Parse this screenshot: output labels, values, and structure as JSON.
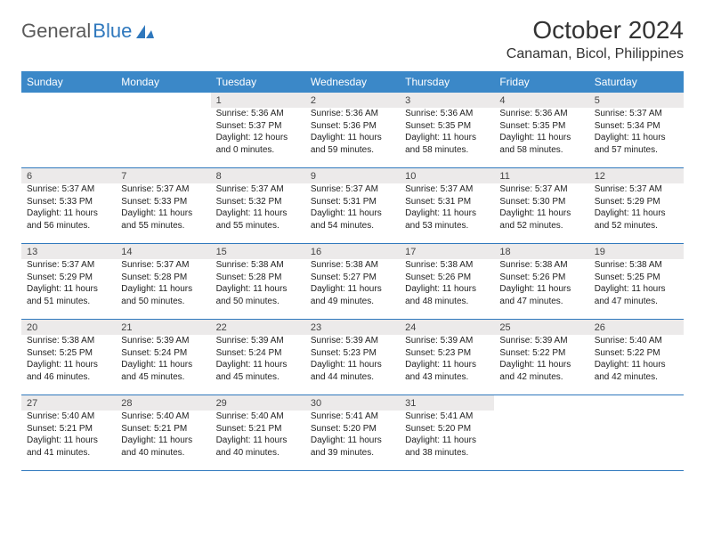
{
  "logo": {
    "text1": "General",
    "text2": "Blue",
    "text1_color": "#5a5a5a",
    "text2_color": "#2f78bd",
    "icon_color": "#2f78bd"
  },
  "title": "October 2024",
  "subtitle": "Canaman, Bicol, Philippines",
  "colors": {
    "header_bg": "#3b88c8",
    "header_text": "#ffffff",
    "daynum_bg": "#eceaea",
    "week_border": "#2f78bd",
    "body_text": "#222222"
  },
  "fontsize": {
    "title": 28,
    "subtitle": 16,
    "dow": 12,
    "cell": 10,
    "daynum": 11
  },
  "days_of_week": [
    "Sunday",
    "Monday",
    "Tuesday",
    "Wednesday",
    "Thursday",
    "Friday",
    "Saturday"
  ],
  "weeks": [
    [
      null,
      null,
      {
        "n": "1",
        "sr": "5:36 AM",
        "ss": "5:37 PM",
        "dl": "12 hours and 0 minutes."
      },
      {
        "n": "2",
        "sr": "5:36 AM",
        "ss": "5:36 PM",
        "dl": "11 hours and 59 minutes."
      },
      {
        "n": "3",
        "sr": "5:36 AM",
        "ss": "5:35 PM",
        "dl": "11 hours and 58 minutes."
      },
      {
        "n": "4",
        "sr": "5:36 AM",
        "ss": "5:35 PM",
        "dl": "11 hours and 58 minutes."
      },
      {
        "n": "5",
        "sr": "5:37 AM",
        "ss": "5:34 PM",
        "dl": "11 hours and 57 minutes."
      }
    ],
    [
      {
        "n": "6",
        "sr": "5:37 AM",
        "ss": "5:33 PM",
        "dl": "11 hours and 56 minutes."
      },
      {
        "n": "7",
        "sr": "5:37 AM",
        "ss": "5:33 PM",
        "dl": "11 hours and 55 minutes."
      },
      {
        "n": "8",
        "sr": "5:37 AM",
        "ss": "5:32 PM",
        "dl": "11 hours and 55 minutes."
      },
      {
        "n": "9",
        "sr": "5:37 AM",
        "ss": "5:31 PM",
        "dl": "11 hours and 54 minutes."
      },
      {
        "n": "10",
        "sr": "5:37 AM",
        "ss": "5:31 PM",
        "dl": "11 hours and 53 minutes."
      },
      {
        "n": "11",
        "sr": "5:37 AM",
        "ss": "5:30 PM",
        "dl": "11 hours and 52 minutes."
      },
      {
        "n": "12",
        "sr": "5:37 AM",
        "ss": "5:29 PM",
        "dl": "11 hours and 52 minutes."
      }
    ],
    [
      {
        "n": "13",
        "sr": "5:37 AM",
        "ss": "5:29 PM",
        "dl": "11 hours and 51 minutes."
      },
      {
        "n": "14",
        "sr": "5:37 AM",
        "ss": "5:28 PM",
        "dl": "11 hours and 50 minutes."
      },
      {
        "n": "15",
        "sr": "5:38 AM",
        "ss": "5:28 PM",
        "dl": "11 hours and 50 minutes."
      },
      {
        "n": "16",
        "sr": "5:38 AM",
        "ss": "5:27 PM",
        "dl": "11 hours and 49 minutes."
      },
      {
        "n": "17",
        "sr": "5:38 AM",
        "ss": "5:26 PM",
        "dl": "11 hours and 48 minutes."
      },
      {
        "n": "18",
        "sr": "5:38 AM",
        "ss": "5:26 PM",
        "dl": "11 hours and 47 minutes."
      },
      {
        "n": "19",
        "sr": "5:38 AM",
        "ss": "5:25 PM",
        "dl": "11 hours and 47 minutes."
      }
    ],
    [
      {
        "n": "20",
        "sr": "5:38 AM",
        "ss": "5:25 PM",
        "dl": "11 hours and 46 minutes."
      },
      {
        "n": "21",
        "sr": "5:39 AM",
        "ss": "5:24 PM",
        "dl": "11 hours and 45 minutes."
      },
      {
        "n": "22",
        "sr": "5:39 AM",
        "ss": "5:24 PM",
        "dl": "11 hours and 45 minutes."
      },
      {
        "n": "23",
        "sr": "5:39 AM",
        "ss": "5:23 PM",
        "dl": "11 hours and 44 minutes."
      },
      {
        "n": "24",
        "sr": "5:39 AM",
        "ss": "5:23 PM",
        "dl": "11 hours and 43 minutes."
      },
      {
        "n": "25",
        "sr": "5:39 AM",
        "ss": "5:22 PM",
        "dl": "11 hours and 42 minutes."
      },
      {
        "n": "26",
        "sr": "5:40 AM",
        "ss": "5:22 PM",
        "dl": "11 hours and 42 minutes."
      }
    ],
    [
      {
        "n": "27",
        "sr": "5:40 AM",
        "ss": "5:21 PM",
        "dl": "11 hours and 41 minutes."
      },
      {
        "n": "28",
        "sr": "5:40 AM",
        "ss": "5:21 PM",
        "dl": "11 hours and 40 minutes."
      },
      {
        "n": "29",
        "sr": "5:40 AM",
        "ss": "5:21 PM",
        "dl": "11 hours and 40 minutes."
      },
      {
        "n": "30",
        "sr": "5:41 AM",
        "ss": "5:20 PM",
        "dl": "11 hours and 39 minutes."
      },
      {
        "n": "31",
        "sr": "5:41 AM",
        "ss": "5:20 PM",
        "dl": "11 hours and 38 minutes."
      },
      null,
      null
    ]
  ],
  "labels": {
    "sunrise": "Sunrise:",
    "sunset": "Sunset:",
    "daylight": "Daylight:"
  }
}
